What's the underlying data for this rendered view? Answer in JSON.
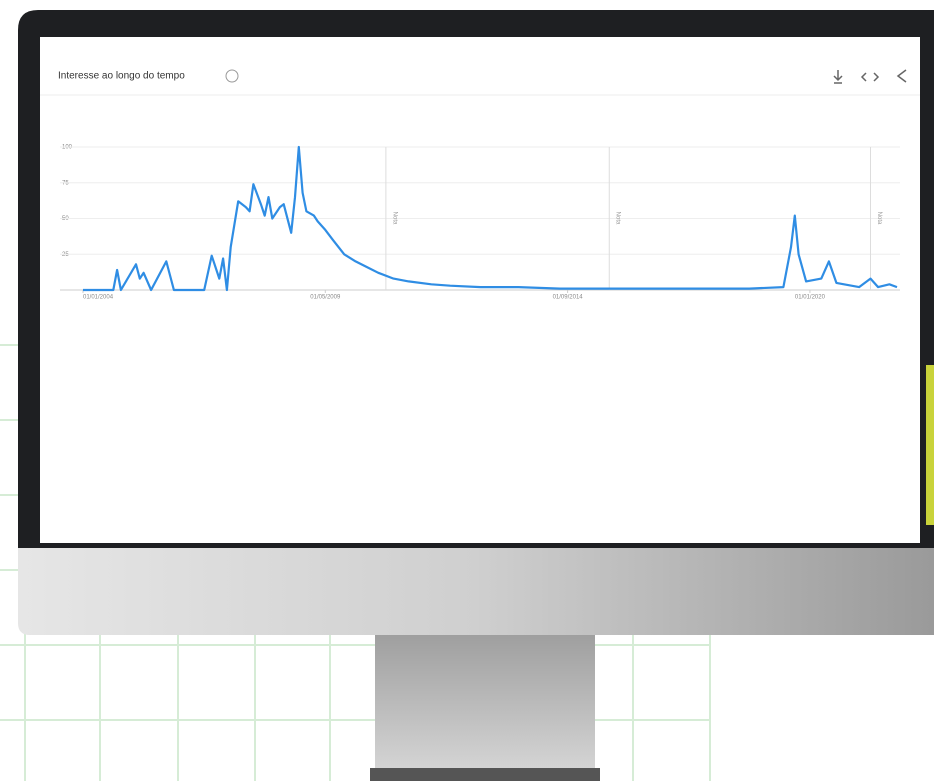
{
  "chart_data": {
    "type": "line",
    "title": "Interesse ao longo do tempo",
    "x": [
      0,
      8,
      9,
      10,
      14,
      15,
      16,
      18,
      22,
      24,
      32,
      34,
      36,
      37,
      38,
      39,
      41,
      43,
      44,
      45,
      47,
      48,
      49,
      50,
      52,
      53,
      55,
      56,
      57,
      58,
      59,
      61,
      62,
      64,
      66,
      69,
      72,
      75,
      78,
      82,
      86,
      92,
      97,
      105,
      115,
      126,
      136,
      150,
      163,
      176,
      185,
      187,
      188,
      189,
      191,
      195,
      197,
      199,
      205,
      208,
      210,
      213,
      215
    ],
    "values": [
      0,
      0,
      14,
      0,
      18,
      8,
      12,
      0,
      20,
      0,
      0,
      24,
      8,
      22,
      0,
      30,
      62,
      58,
      55,
      74,
      60,
      52,
      65,
      50,
      58,
      60,
      40,
      65,
      100,
      68,
      55,
      52,
      48,
      42,
      35,
      25,
      20,
      16,
      12,
      8,
      6,
      4,
      3,
      2,
      2,
      1,
      1,
      1,
      1,
      1,
      2,
      30,
      52,
      25,
      6,
      8,
      20,
      5,
      2,
      8,
      2,
      4,
      2
    ],
    "color": "#2f8de4",
    "xlim": [
      0,
      215
    ],
    "xticks": [
      {
        "value": 0,
        "label": "01/01/2004"
      },
      {
        "value": 64,
        "label": "01/05/2009"
      },
      {
        "value": 128,
        "label": "01/09/2014"
      },
      {
        "value": 192,
        "label": "01/01/2020"
      }
    ],
    "ylim": [
      0,
      100
    ],
    "yticks": [
      25,
      50,
      75,
      100
    ],
    "grid": true,
    "notes": [
      {
        "x": 80,
        "label": "Nota"
      },
      {
        "x": 139,
        "label": "Nota"
      },
      {
        "x": 208,
        "label": "Nota"
      }
    ]
  }
}
